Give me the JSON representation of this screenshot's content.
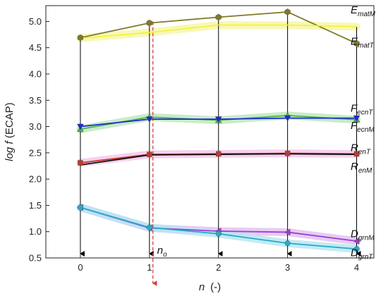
{
  "chart_data": {
    "type": "line",
    "xlabel_var": "n",
    "xlabel_unit": "(-)",
    "ylabel_pre": "log ",
    "ylabel_var": "f",
    "ylabel_post": " (ECAP)",
    "xlim": [
      -0.5,
      4.25
    ],
    "ylim": [
      0.5,
      5.3
    ],
    "x_ticks": [
      0,
      1,
      2,
      3,
      4
    ],
    "x_tick_labels": [
      "0",
      "1",
      "2",
      "3",
      "4"
    ],
    "y_ticks": [
      0.5,
      1.0,
      1.5,
      2.0,
      2.5,
      3.0,
      3.5,
      4.0,
      4.5,
      5.0
    ],
    "y_tick_labels": [
      "0.5",
      "1.0",
      "1.5",
      "2.0",
      "2.5",
      "3.0",
      "3.5",
      "4.0",
      "4.5",
      "5.0"
    ],
    "grid": false,
    "x": [
      0,
      1,
      2,
      3,
      4
    ],
    "series": [
      {
        "label_main": "E",
        "label_sub": "matM",
        "values": [
          4.69,
          4.97,
          5.08,
          5.18,
          4.58
        ],
        "color": "#7f7a2a",
        "marker": "hexagon"
      },
      {
        "label_main": "E",
        "label_sub": "matT",
        "values": [
          4.68,
          4.79,
          4.93,
          4.93,
          4.9
        ],
        "color": "#f2f23a",
        "marker": "none"
      },
      {
        "label_main": "F",
        "label_sub": "ecnT",
        "values": [
          2.95,
          3.18,
          3.12,
          3.21,
          3.13
        ],
        "color": "#4caf50",
        "marker": "triangle-up"
      },
      {
        "label_main": "F",
        "label_sub": "ecnM",
        "values": [
          3.0,
          3.14,
          3.14,
          3.16,
          3.16
        ],
        "color": "#1a2bd6",
        "marker": "triangle-down"
      },
      {
        "label_main": "R",
        "label_sub": "enT",
        "values": [
          2.31,
          2.47,
          2.48,
          2.49,
          2.48
        ],
        "color": "#c0392b",
        "marker": "square"
      },
      {
        "label_main": "R",
        "label_sub": "enM",
        "values": [
          2.27,
          2.46,
          2.47,
          2.48,
          2.47
        ],
        "color": "#111111",
        "marker": "none"
      },
      {
        "label_main": "D",
        "label_sub": "grnM",
        "values": [
          1.46,
          1.07,
          1.01,
          0.99,
          0.82
        ],
        "color": "#9b3fd0",
        "marker": "triangle-left"
      },
      {
        "label_main": "D",
        "label_sub": "grnT",
        "values": [
          1.46,
          1.08,
          0.96,
          0.78,
          0.67
        ],
        "color": "#2aaac8",
        "marker": "circle"
      }
    ],
    "label_y_values": [
      5.22,
      4.62,
      3.35,
      3.02,
      2.6,
      2.24,
      0.96,
      0.6
    ],
    "marker_x_ref": 1.05,
    "annotation": {
      "text_main": "n",
      "text_sub": "o",
      "x": 1.05,
      "y": 0.65
    },
    "colors": {
      "axis": "#222222",
      "drop_lines": "#000000",
      "ref_line": "#d0453b",
      "band_yellow": "#f7f7a8",
      "band_green": "#bfe8c0",
      "band_pink": "#f7c7ec",
      "band_purple": "#e3c2f2",
      "band_cyan": "#b6e7f2"
    }
  }
}
